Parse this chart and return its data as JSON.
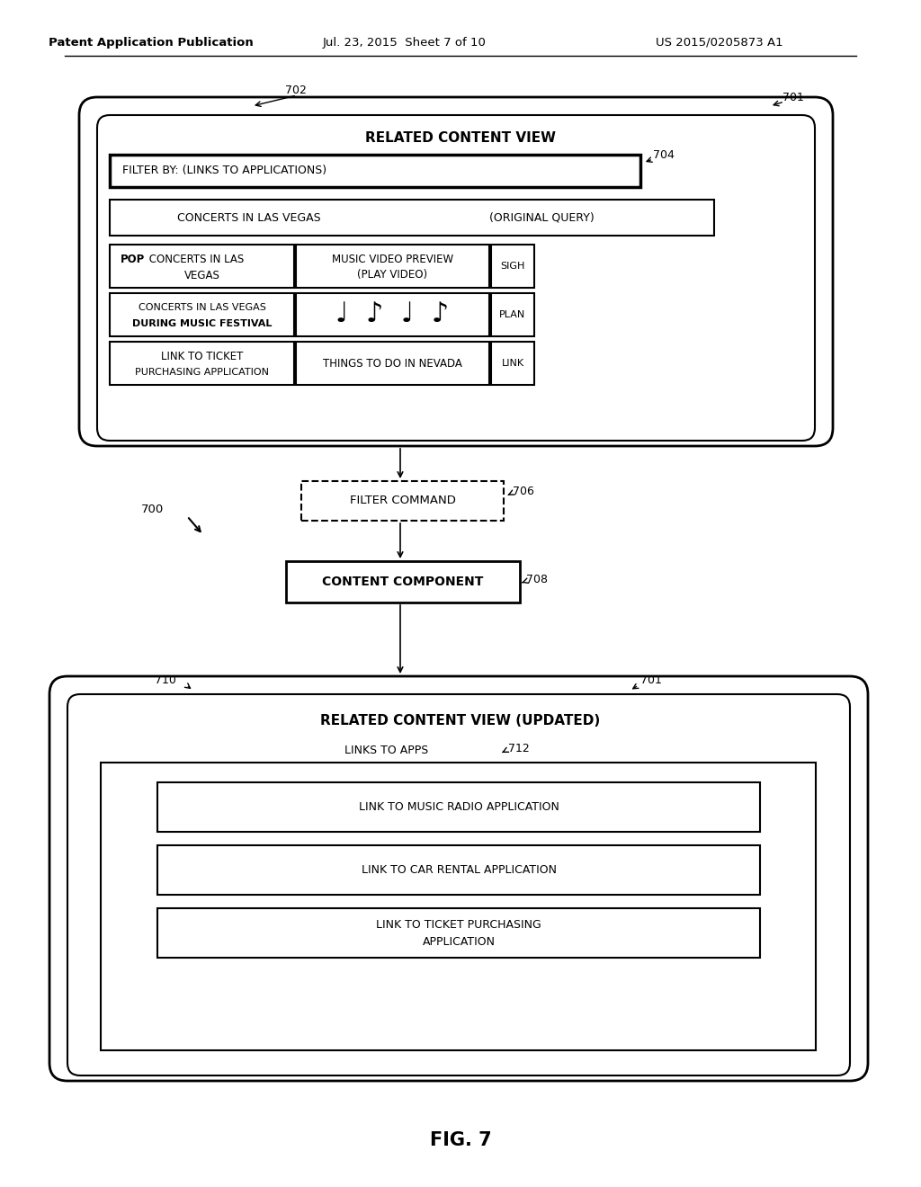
{
  "bg_color": "#ffffff",
  "header_left": "Patent Application Publication",
  "header_center": "Jul. 23, 2015  Sheet 7 of 10",
  "header_right": "US 2015/0205873 A1",
  "fig_label": "FIG. 7",
  "top_box": {
    "title": "RELATED CONTENT VIEW",
    "label_701": "701",
    "label_702": "702",
    "filter_bar": "FILTER BY: (LINKS TO APPLICATIONS)",
    "filter_label": "704",
    "row0_left": "CONCERTS IN LAS VEGAS",
    "row0_right": "(ORIGINAL QUERY)",
    "row1_left1": "POP CONCERTS IN LAS",
    "row1_left2": "VEGAS",
    "row1_right1": "MUSIC VIDEO PREVIEW",
    "row1_right2": "(PLAY VIDEO)",
    "row1_side": "SIGH",
    "row2_left1": "CONCERTS IN LAS VEGAS",
    "row2_left2": "DURING MUSIC FESTIVAL",
    "row2_notes": "♪  ♫  ♪  ♫",
    "row2_side": "PLAN",
    "row3_left1": "LINK TO TICKET",
    "row3_left2": "PURCHASING APPLICATION",
    "row3_right": "THINGS TO DO IN NEVADA",
    "row3_side": "LINK"
  },
  "filter_cmd_text": "FILTER COMMAND",
  "filter_cmd_label": "706",
  "content_comp_text": "CONTENT COMPONENT",
  "content_comp_label": "708",
  "label_700": "700",
  "bottom_box": {
    "title": "RELATED CONTENT VIEW (UPDATED)",
    "label_701": "701",
    "label_710": "710",
    "inner_label": "LINKS TO APPS",
    "inner_ref": "712",
    "app1": "LINK TO MUSIC RADIO APPLICATION",
    "app2": "LINK TO CAR RENTAL APPLICATION",
    "app3_1": "LINK TO TICKET PURCHASING",
    "app3_2": "APPLICATION"
  }
}
